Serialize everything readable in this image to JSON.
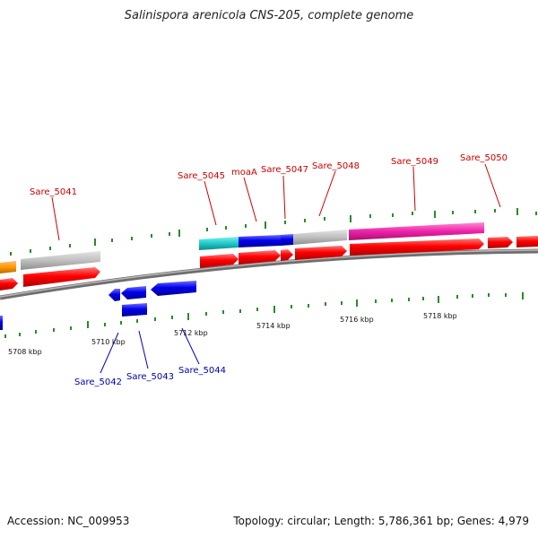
{
  "title": "Salinispora arenicola CNS-205, complete genome",
  "accession": "Accession: NC_009953",
  "topology": "Topology: circular; Length: 5,786,361 bp; Genes: 4,979",
  "colors": {
    "forward_label": "#cc0000",
    "reverse_label": "#0000aa",
    "cds": "#ff0000",
    "reverse_gene": "#0000ee",
    "hypothetical": "#c0c0c0",
    "cyan_gene": "#20c8c8",
    "magenta_gene": "#ee22aa",
    "orange_gene": "#ff9900",
    "tick": "#2a8a2a",
    "backbone": "#888888"
  },
  "kbp_labels": [
    "5708 kbp",
    "5710 kbp",
    "5712 kbp",
    "5714 kbp",
    "5716 kbp",
    "5718 kbp"
  ],
  "forward_genes": [
    "Sare_5041",
    "Sare_5045",
    "moaA",
    "Sare_5047",
    "Sare_5048",
    "Sare_5049",
    "Sare_5050"
  ],
  "reverse_genes": [
    "Sare_5042",
    "Sare_5043",
    "Sare_5044"
  ]
}
